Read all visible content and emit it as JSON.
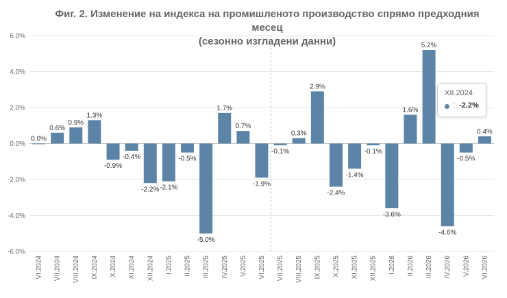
{
  "chart_data": {
    "type": "bar",
    "title_line1": "Фиг. 2. Изменение на индекса на промишленото производство спрямо предходния месец",
    "title_line2": "(сезонно изгладени данни)",
    "categories": [
      "VI.2024",
      "VII.2024",
      "VIII.2024",
      "IX.2024",
      "X.2024",
      "XI.2024",
      "XII.2024",
      "I.2025",
      "II.2025",
      "III.2025",
      "IV.2025",
      "V.2025",
      "VI.2025",
      "VII.2025",
      "VIII.2025",
      "IX.2025",
      "X.2025",
      "XI.2025",
      "XII.2025",
      "I.2026",
      "II.2026",
      "III.2026",
      "IV.2026",
      "V.2026",
      "VI.2026"
    ],
    "values": [
      0.0,
      0.6,
      0.9,
      1.3,
      -0.9,
      -0.4,
      -2.2,
      -2.1,
      -0.5,
      -5.0,
      1.7,
      0.7,
      -1.9,
      -0.1,
      0.3,
      2.9,
      -2.4,
      -1.4,
      -0.1,
      -3.6,
      1.6,
      5.2,
      -4.6,
      -0.5,
      0.4
    ],
    "data_labels": [
      "0.0%",
      "0.6%",
      "0.9%",
      "1.3%",
      "-0.9%",
      "-0.4%",
      "-2.2%",
      "-2.1%",
      "-0.5%",
      "-5.0%",
      "1.7%",
      "0.7%",
      "-1.9%",
      "-0.1%",
      "0.3%",
      "2.9%",
      "-2.4%",
      "-1.4%",
      "-0.1%",
      "-3.6%",
      "1.6%",
      "5.2%",
      "-4.6%",
      "-0.5%",
      "0.4%"
    ],
    "yticks": [
      "6.0%",
      "4.0%",
      "2.0%",
      "0.0%",
      "-2.0%",
      "-4.0%",
      "-6.0%"
    ],
    "ylim": [
      -6,
      6
    ],
    "grid": true,
    "divider_after_category": "VI.2025",
    "bar_color": "#5c84a6"
  },
  "tooltip": {
    "title": "XII.2024",
    "separator": ":",
    "value": "-2.2%"
  }
}
